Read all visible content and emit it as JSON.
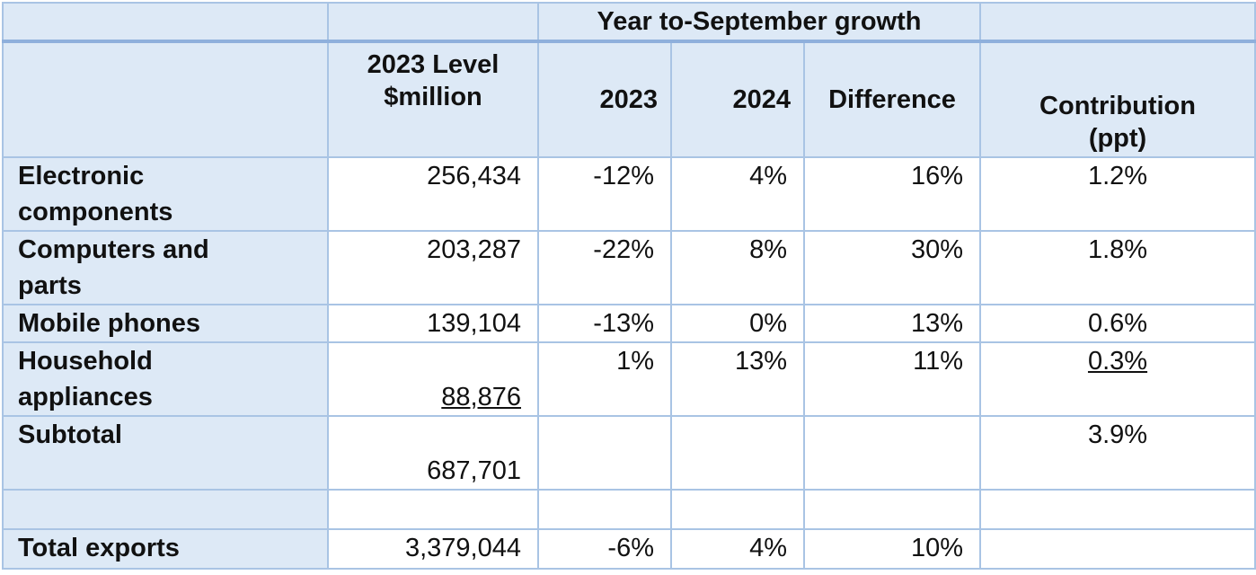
{
  "table": {
    "header": {
      "group_label": "Year to-September growth",
      "level_line1": "2023 Level",
      "level_line2": "$million",
      "col_2023": "2023",
      "col_2024": "2024",
      "col_difference": "Difference",
      "contrib_line1": "Contribution",
      "contrib_line2": "(ppt)"
    },
    "rows": [
      {
        "label_line1": "Electronic",
        "label_line2": "components",
        "level": "256,434",
        "g2023": "-12%",
        "g2024": "4%",
        "difference": "16%",
        "contribution": "1.2%"
      },
      {
        "label_line1": "Computers and",
        "label_line2": "parts",
        "level": "203,287",
        "g2023": "-22%",
        "g2024": "8%",
        "difference": "30%",
        "contribution": "1.8%"
      },
      {
        "label": "Mobile phones",
        "level": "139,104",
        "g2023": "-13%",
        "g2024": "0%",
        "difference": "13%",
        "contribution": "0.6%"
      },
      {
        "label_line1": "Household",
        "label_line2": "appliances",
        "level": "88,876",
        "g2023": "1%",
        "g2024": "13%",
        "difference": "11%",
        "contribution": "0.3%"
      },
      {
        "label": "Subtotal",
        "level": "687,701",
        "contribution": "3.9%"
      },
      {
        "label": "Total exports",
        "level": "3,379,044",
        "g2023": "-6%",
        "g2024": "4%",
        "difference": "10%"
      }
    ]
  }
}
